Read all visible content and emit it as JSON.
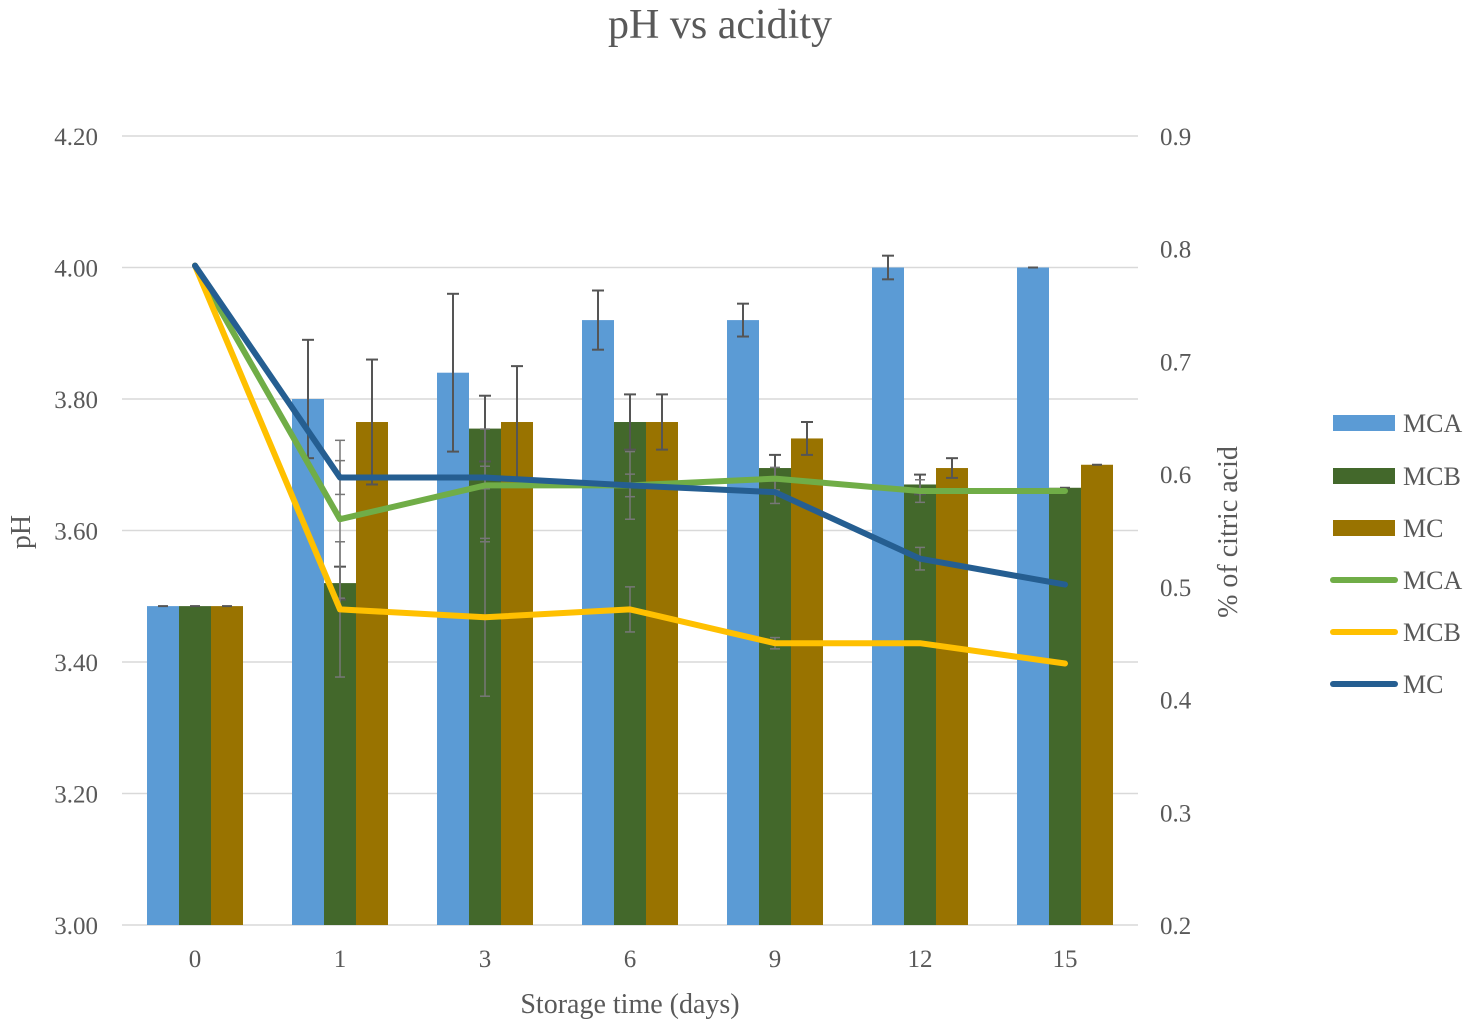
{
  "chart_data": {
    "type": "bar",
    "title": "pH vs acidity",
    "xlabel": "Storage time (days)",
    "ylabel": "pH",
    "y2label": "% of citric acid",
    "categories": [
      "0",
      "1",
      "3",
      "6",
      "9",
      "12",
      "15"
    ],
    "ylim": [
      3.0,
      4.2
    ],
    "yticks": [
      "3.00",
      "3.20",
      "3.40",
      "3.60",
      "3.80",
      "4.00",
      "4.20"
    ],
    "y2lim": [
      0.2,
      0.9
    ],
    "y2ticks": [
      "0.2",
      "0.3",
      "0.4",
      "0.5",
      "0.6",
      "0.7",
      "0.8",
      "0.9"
    ],
    "legend_position": "right",
    "bar_series": [
      {
        "name": "MCA",
        "color": "#5b9bd5",
        "values": [
          3.485,
          3.8,
          3.84,
          3.92,
          3.92,
          4.0,
          4.0
        ],
        "errors": [
          0.0,
          0.09,
          0.12,
          0.045,
          0.025,
          0.018,
          0.0
        ]
      },
      {
        "name": "MCB",
        "color": "#43682b",
        "values": [
          3.485,
          3.52,
          3.755,
          3.765,
          3.695,
          3.67,
          3.665
        ],
        "errors": [
          0.0,
          0.025,
          0.05,
          0.042,
          0.02,
          0.015,
          0.0
        ]
      },
      {
        "name": "MC",
        "color": "#997300",
        "values": [
          3.485,
          3.765,
          3.765,
          3.765,
          3.74,
          3.695,
          3.7
        ],
        "errors": [
          0.0,
          0.095,
          0.085,
          0.042,
          0.025,
          0.015,
          0.0
        ]
      }
    ],
    "line_series": [
      {
        "name": "MCA",
        "color": "#70ad47",
        "values": [
          0.785,
          0.56,
          0.59,
          0.59,
          0.596,
          0.585,
          0.585
        ],
        "errors": [
          0,
          0.07,
          0.05,
          0.03,
          0.01,
          0.01,
          0
        ]
      },
      {
        "name": "MCB",
        "color": "#ffc000",
        "values": [
          0.785,
          0.48,
          0.473,
          0.48,
          0.45,
          0.45,
          0.432
        ],
        "errors": [
          0,
          0.06,
          0.07,
          0.02,
          0.005,
          0,
          0
        ]
      },
      {
        "name": "MC",
        "color": "#255e91",
        "values": [
          0.785,
          0.597,
          0.597,
          0.59,
          0.584,
          0.525,
          0.502
        ],
        "errors": [
          0,
          0.015,
          0.01,
          0.01,
          0.01,
          0.01,
          0
        ]
      }
    ]
  }
}
